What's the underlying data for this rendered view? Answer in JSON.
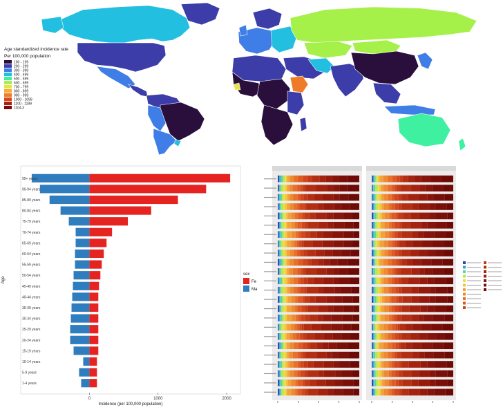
{
  "map": {
    "legend_title": "Age standardized incidence rate",
    "legend_subtitle": "Per 100,000 population",
    "legend_items": [
      {
        "label": "100 - 199",
        "color": "#2a0f3c"
      },
      {
        "label": "200 - 299",
        "color": "#3c3da8"
      },
      {
        "label": "300 - 399",
        "color": "#3f7ee6"
      },
      {
        "label": "400 - 499",
        "color": "#22bfe0"
      },
      {
        "label": "500 - 599",
        "color": "#3ff0a0"
      },
      {
        "label": "600 - 699",
        "color": "#a6f04a"
      },
      {
        "label": "700 - 799",
        "color": "#e6e24a"
      },
      {
        "label": "800 - 899",
        "color": "#f6ad3a"
      },
      {
        "label": "900 - 999",
        "color": "#ef7a28"
      },
      {
        "label": "1000 - 1099",
        "color": "#d9481a"
      },
      {
        "label": "1100 - 1199",
        "color": "#b02012"
      },
      {
        "label": "1104.3",
        "color": "#7a0a08"
      }
    ]
  },
  "chart_data": [
    {
      "type": "bar",
      "subtype": "population-pyramid",
      "categories": [
        "95+ years",
        "90-94 years",
        "85-89 years",
        "80-84 years",
        "75-79 years",
        "70-74 years",
        "65-69 years",
        "60-64 years",
        "55-59 years",
        "50-54 years",
        "45-49 years",
        "40-44 years",
        "35-39 years",
        "30-34 years",
        "25-29 years",
        "20-24 years",
        "15-19 years",
        "10-14 years",
        "5-9 years",
        "1-4 years"
      ],
      "series": [
        {
          "name": "Fe",
          "color": "#e52421",
          "values": [
            2050,
            1700,
            1290,
            900,
            560,
            330,
            250,
            210,
            180,
            160,
            140,
            130,
            130,
            130,
            130,
            130,
            130,
            110,
            110,
            110
          ]
        },
        {
          "name": "Ma",
          "color": "#2f7dbf",
          "values": [
            -840,
            -720,
            -580,
            -420,
            -300,
            -200,
            -200,
            -210,
            -210,
            -230,
            -240,
            -250,
            -260,
            -270,
            -280,
            -280,
            -230,
            -90,
            -150,
            -120
          ]
        }
      ],
      "xlabel": "Incidence (per 100,000 population)",
      "ylabel": "Age",
      "xticks": [
        "0",
        "1000",
        "2000"
      ],
      "xlim": [
        -1000,
        2200
      ],
      "legend_title": "sex",
      "legend_position": "right"
    },
    {
      "type": "bar",
      "subtype": "stacked-horizontal-100pct",
      "facets": 2,
      "rows": 24,
      "segments_per_row": 18,
      "legend_position": "right"
    }
  ]
}
